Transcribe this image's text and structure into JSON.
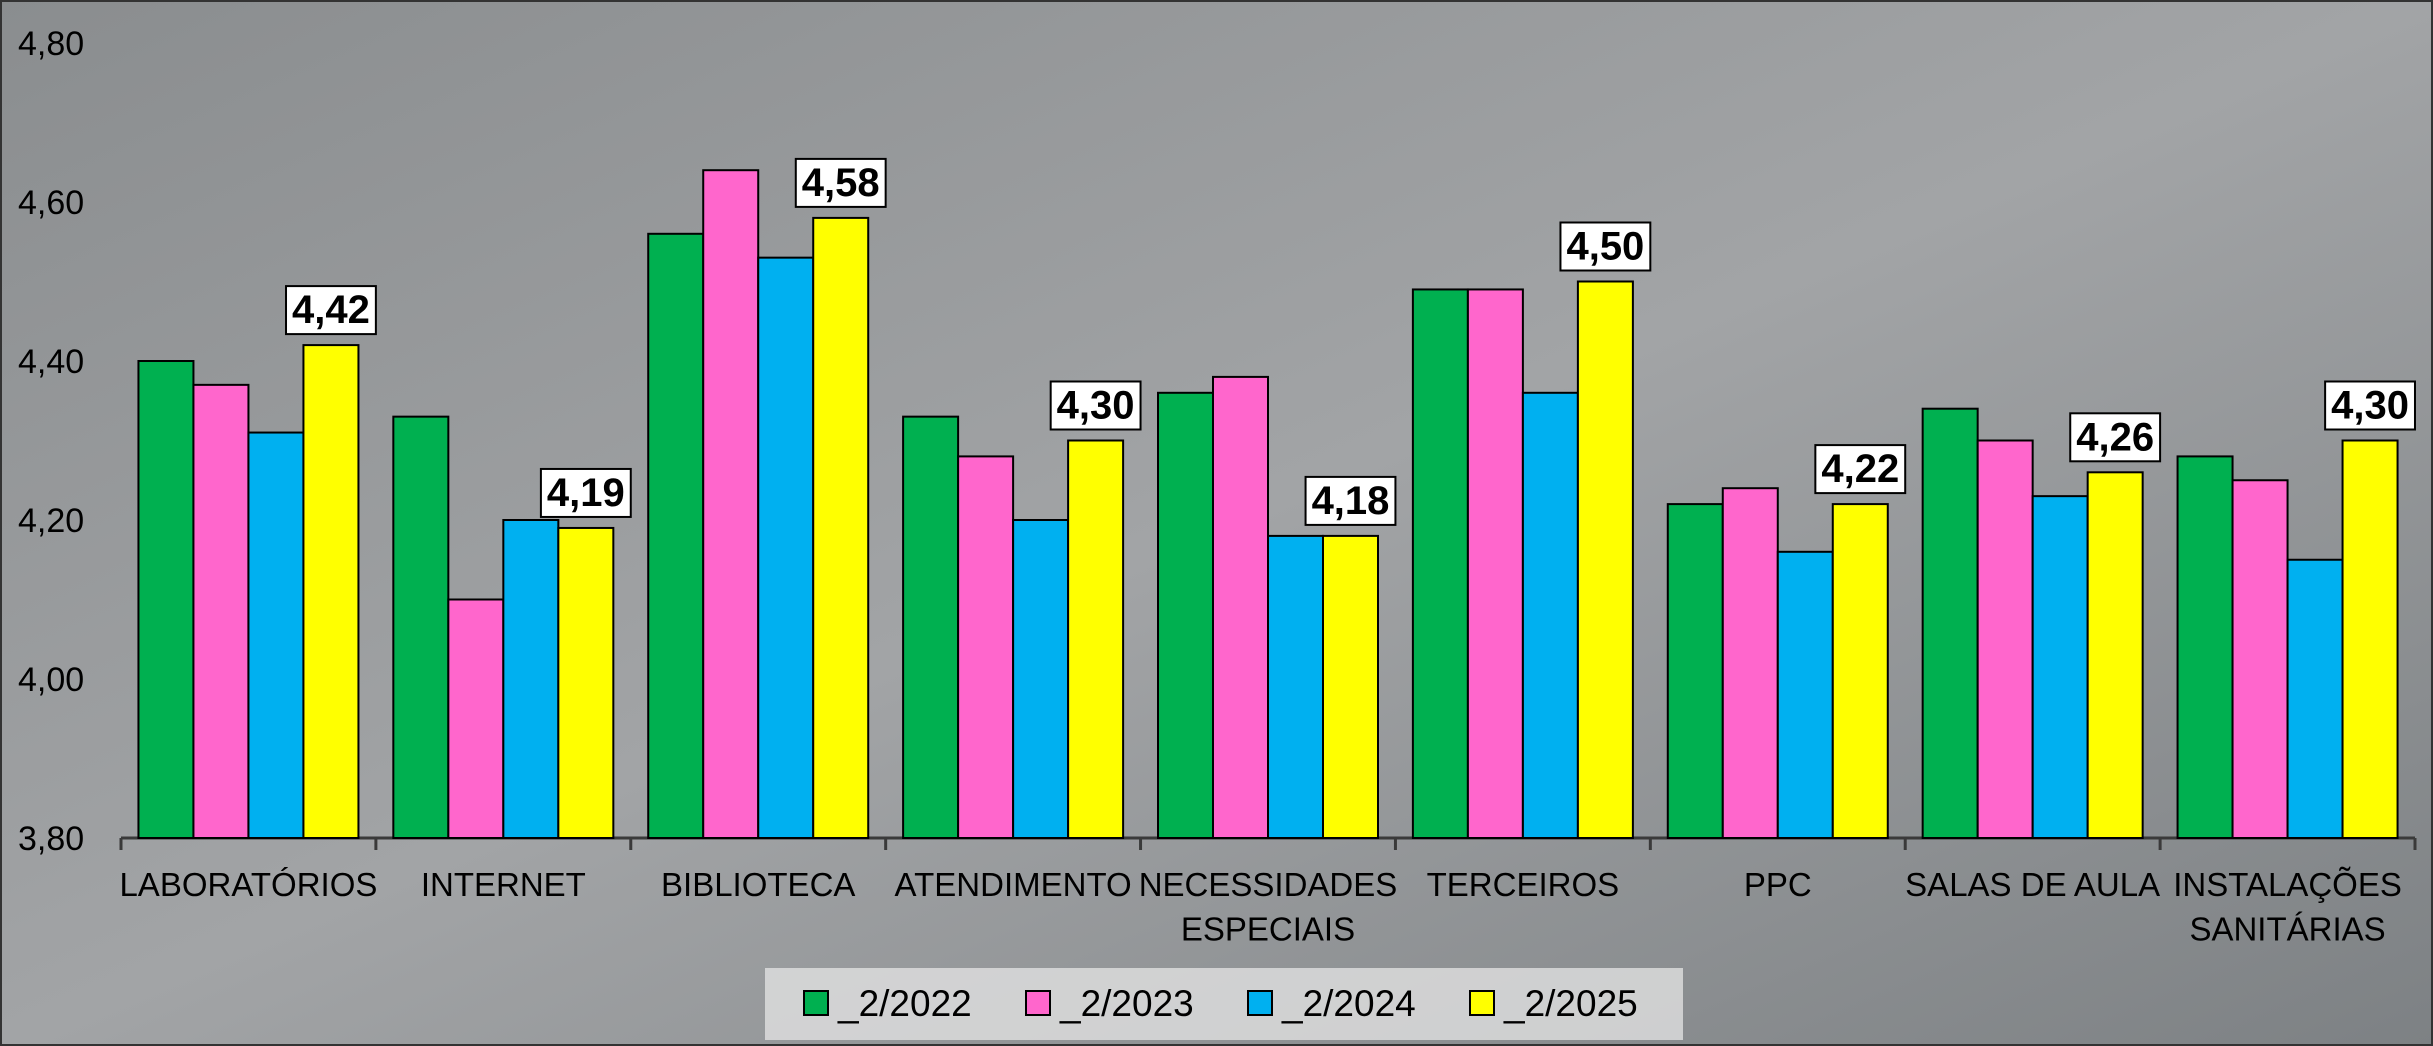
{
  "chart_data": {
    "type": "bar",
    "categories": [
      "LABORATÓRIOS",
      "INTERNET",
      "BIBLIOTECA",
      "ATENDIMENTO",
      "NECESSIDADES\nESPECIAIS",
      "TERCEIROS",
      "PPC",
      "SALAS DE AULA",
      "INSTALAÇÕES\nSANITÁRIAS"
    ],
    "series": [
      {
        "name": "_2/2022",
        "color": "#00b050",
        "values": [
          4.4,
          4.33,
          4.56,
          4.33,
          4.36,
          4.49,
          4.22,
          4.34,
          4.28
        ]
      },
      {
        "name": "_2/2023",
        "color": "#ff66cc",
        "values": [
          4.37,
          4.1,
          4.64,
          4.28,
          4.38,
          4.49,
          4.24,
          4.3,
          4.25
        ]
      },
      {
        "name": "_2/2024",
        "color": "#00b0f0",
        "values": [
          4.31,
          4.2,
          4.53,
          4.2,
          4.18,
          4.36,
          4.16,
          4.23,
          4.15
        ]
      },
      {
        "name": "_2/2025",
        "color": "#ffff00",
        "values": [
          4.42,
          4.19,
          4.58,
          4.3,
          4.18,
          4.5,
          4.22,
          4.26,
          4.3
        ],
        "value_labels": [
          "4,42",
          "4,19",
          "4,58",
          "4,30",
          "4,18",
          "4,50",
          "4,22",
          "4,26",
          "4,30"
        ]
      }
    ],
    "ylim": [
      3.8,
      4.8
    ],
    "yticks": [
      {
        "value": 3.8,
        "label": "3,80"
      },
      {
        "value": 4.0,
        "label": "4,00"
      },
      {
        "value": 4.2,
        "label": "4,20"
      },
      {
        "value": 4.4,
        "label": "4,40"
      },
      {
        "value": 4.6,
        "label": "4,60"
      },
      {
        "value": 4.8,
        "label": "4,80"
      }
    ],
    "grid": false,
    "legend": "bottom"
  }
}
